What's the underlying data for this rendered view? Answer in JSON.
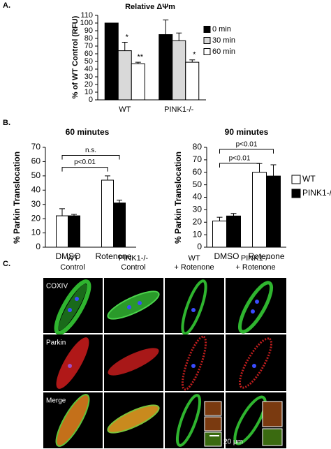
{
  "panel_labels": [
    "A.",
    "B.",
    "C."
  ],
  "chart_data": [
    {
      "type": "bar",
      "title": "Relative ΔΨm",
      "y_label": "% of WT Control (RFU)",
      "categories": [
        "WT",
        "PINK1-/-"
      ],
      "series": [
        {
          "name": "0 min",
          "color": "#000000",
          "values": [
            100,
            85
          ],
          "errors": [
            null,
            19
          ]
        },
        {
          "name": "30 min",
          "color": "#d9d9d9",
          "values": [
            64,
            77
          ],
          "errors": [
            11,
            10
          ],
          "annotations": [
            "*",
            null
          ]
        },
        {
          "name": "60 min",
          "color": "#ffffff",
          "values": [
            47,
            49
          ],
          "errors": [
            2,
            3
          ],
          "annotations": [
            "**",
            "*"
          ]
        }
      ],
      "ylim": [
        0,
        110
      ],
      "yticks": [
        0,
        10,
        20,
        30,
        40,
        50,
        60,
        70,
        80,
        90,
        100,
        110
      ],
      "legend": "right"
    },
    {
      "type": "bar",
      "title": "60 minutes",
      "y_label": "% Parkin Translocation",
      "categories": [
        "DMSO",
        "Rotenone"
      ],
      "series": [
        {
          "color": "#ffffff",
          "values": [
            22,
            47
          ],
          "errors": [
            5,
            3
          ]
        },
        {
          "color": "#000000",
          "values": [
            22,
            31
          ],
          "errors": [
            1,
            2
          ]
        }
      ],
      "comparisons": [
        "p<0.01",
        "n.s."
      ],
      "ylim": [
        0,
        70
      ],
      "yticks": [
        0,
        10,
        20,
        30,
        40,
        50,
        60,
        70
      ]
    },
    {
      "type": "bar",
      "title": "90 minutes",
      "y_label": "% Parkin Translocation",
      "categories": [
        "DMSO",
        "Rotenone"
      ],
      "series": [
        {
          "name": "WT",
          "color": "#ffffff",
          "values": [
            21,
            60
          ],
          "errors": [
            3,
            7
          ]
        },
        {
          "name": "PINK1-/-",
          "color": "#000000",
          "values": [
            25,
            57
          ],
          "errors": [
            2,
            9
          ]
        }
      ],
      "comparisons": [
        "p<0.01",
        "p<0.01"
      ],
      "ylim": [
        0,
        80
      ],
      "yticks": [
        0,
        10,
        20,
        30,
        40,
        50,
        60,
        70,
        80
      ],
      "legend": "right"
    }
  ],
  "micrograph": {
    "columns": [
      [
        "WT",
        "Control"
      ],
      [
        "PINK1-/-",
        "Control"
      ],
      [
        "WT",
        "+ Rotenone"
      ],
      [
        "PINK1-/-",
        "+ Rotenone"
      ]
    ],
    "rows": [
      "COXIV",
      "Parkin",
      "Merge"
    ],
    "scale_bar": "20 μm"
  }
}
